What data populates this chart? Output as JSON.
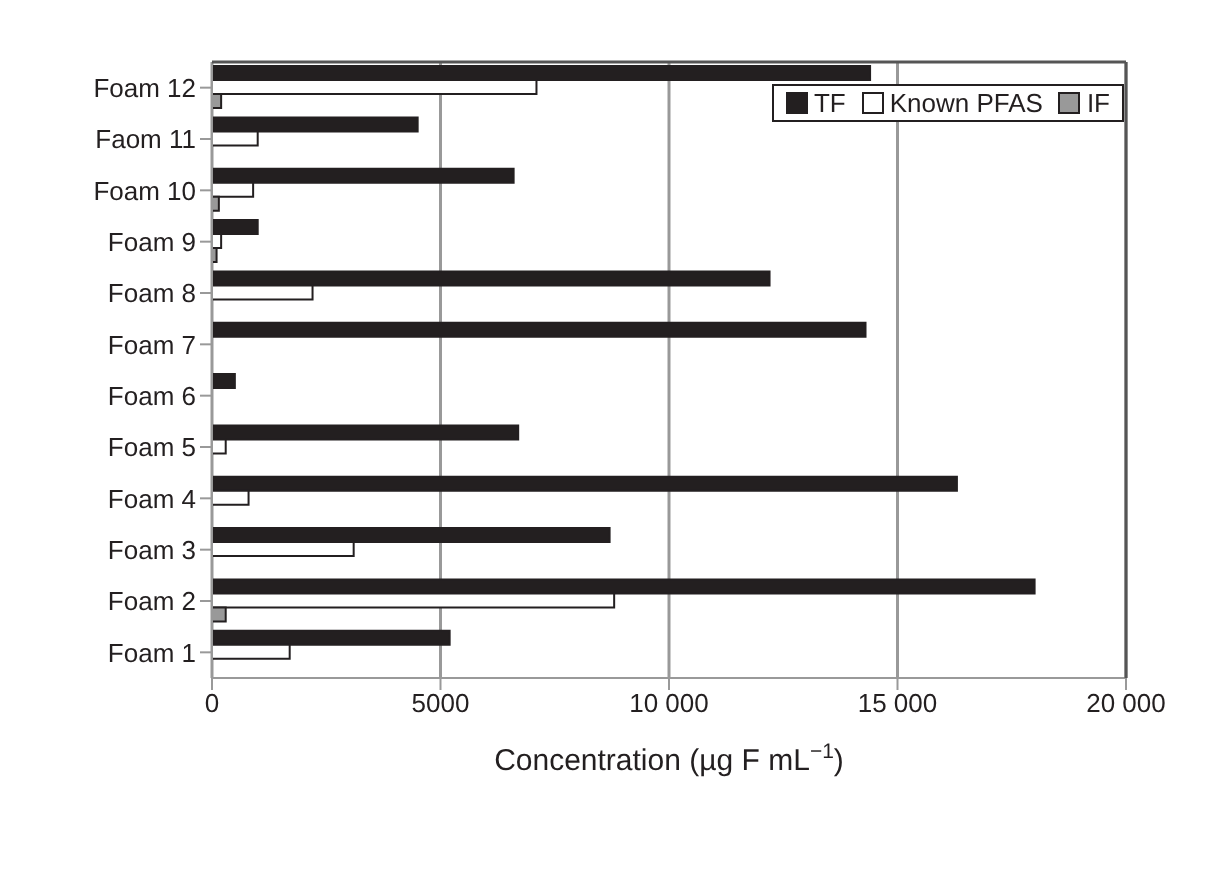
{
  "chart_data": {
    "type": "bar",
    "orientation": "horizontal",
    "xlabel": "Concentration (µg F mL$^{−1}$)",
    "categories": [
      "Foam 12",
      "Faom 11",
      "Foam 10",
      "Foam 9",
      "Foam 8",
      "Foam 7",
      "Foam 6",
      "Foam 5",
      "Foam 4",
      "Foam 3",
      "Foam 2",
      "Foam 1"
    ],
    "series": [
      {
        "name": "TF",
        "color": "#231f20",
        "values": [
          14400,
          4500,
          6600,
          1000,
          12200,
          14300,
          500,
          6700,
          16300,
          8700,
          18000,
          5200
        ]
      },
      {
        "name": "Known PFAS",
        "color": "#ffffff",
        "values": [
          7100,
          1000,
          900,
          200,
          2200,
          0,
          0,
          300,
          800,
          3100,
          8800,
          1700
        ]
      },
      {
        "name": "IF",
        "color": "#999999",
        "values": [
          200,
          0,
          150,
          100,
          0,
          0,
          0,
          0,
          0,
          0,
          300,
          0
        ]
      }
    ],
    "xlim": [
      0,
      20000
    ],
    "xticks": [
      0,
      5000,
      {
        "value": 10000,
        "label": "10 000"
      },
      {
        "value": 15000,
        "label": "15 000"
      },
      {
        "value": 20000,
        "label": "20 000"
      }
    ],
    "grid": "x",
    "legend": "top right"
  }
}
